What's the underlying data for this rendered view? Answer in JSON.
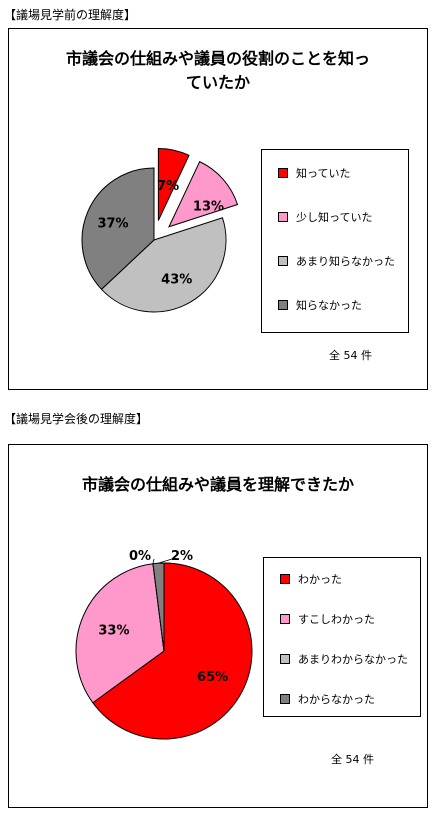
{
  "sections": [
    {
      "label": "【議場見学前の理解度】"
    },
    {
      "label": "【議場見学会後の理解度】"
    }
  ],
  "chart_data": [
    {
      "type": "pie",
      "title": "市議会の仕組みや議員の役割のことを知っ\nていたか",
      "categories": [
        "知っていた",
        "少し知っていた",
        "あまり知らなかった",
        "知らなかった"
      ],
      "values": [
        7,
        13,
        43,
        37
      ],
      "value_labels": [
        "7%",
        "13%",
        "43%",
        "37%"
      ],
      "colors": [
        "#ff0000",
        "#ff99cc",
        "#c0c0c0",
        "#808080"
      ],
      "exploded": [
        true,
        true,
        false,
        false
      ],
      "legend_position": "right",
      "note": "全 54 件"
    },
    {
      "type": "pie",
      "title": "市議会の仕組みや議員を理解できたか",
      "categories": [
        "わかった",
        "すこしわかった",
        "あまりわからなかった",
        "わからなかった"
      ],
      "values": [
        65,
        33,
        0,
        2
      ],
      "value_labels": [
        "65%",
        "33%",
        "0%",
        "2%"
      ],
      "colors": [
        "#ff0000",
        "#ff99cc",
        "#c0c0c0",
        "#808080"
      ],
      "exploded": [
        false,
        false,
        false,
        false
      ],
      "legend_position": "right",
      "note": "全 54 件"
    }
  ]
}
